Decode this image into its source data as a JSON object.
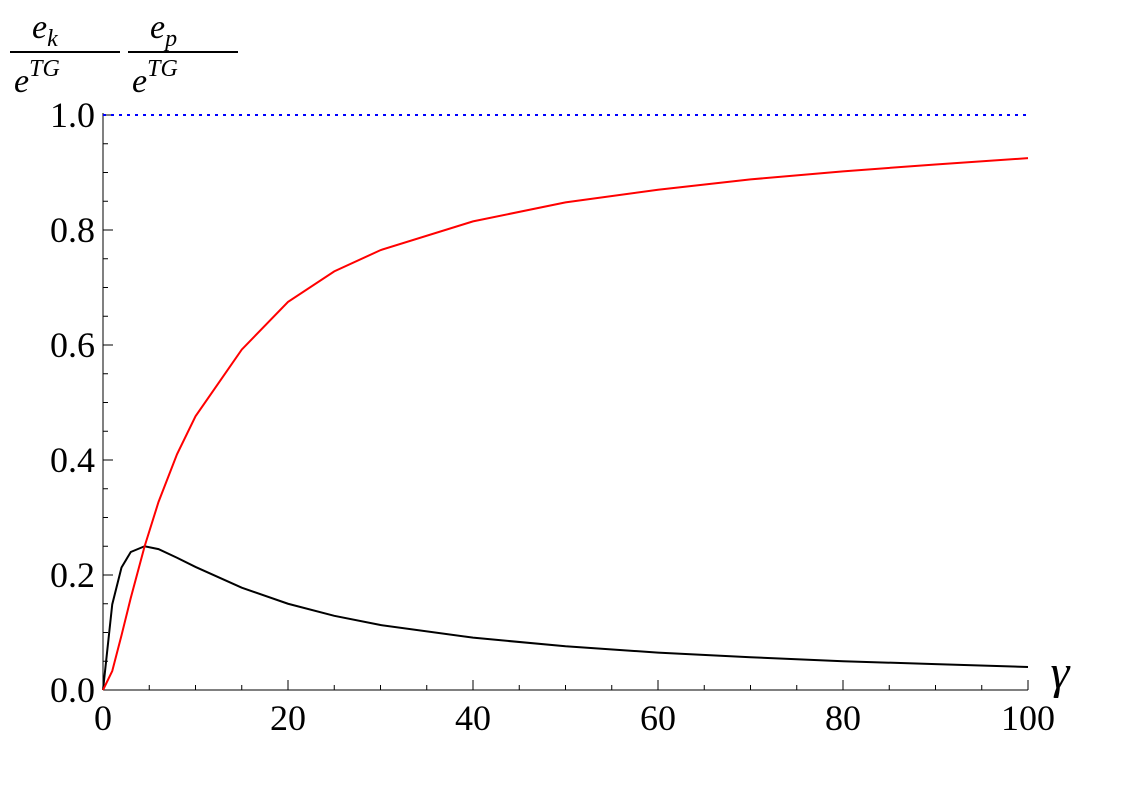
{
  "chart_data": {
    "type": "line",
    "y_label": [
      {
        "num": "e",
        "num_sub": "k",
        "den": "e",
        "den_sup": "TG"
      },
      {
        "num": "e",
        "num_sub": "p",
        "den": "e",
        "den_sup": "TG"
      }
    ],
    "x_label": "γ",
    "x": [
      0,
      1,
      2,
      3,
      4.5,
      6,
      8,
      10,
      15,
      20,
      25,
      30,
      40,
      50,
      60,
      70,
      80,
      90,
      100
    ],
    "series": [
      {
        "color": "#000000",
        "values": [
          0,
          0.149,
          0.213,
          0.24,
          0.25,
          0.245,
          0.23,
          0.214,
          0.178,
          0.15,
          0.129,
          0.113,
          0.091,
          0.076,
          0.065,
          0.057,
          0.05,
          0.045,
          0.04
        ]
      },
      {
        "color": "#ff0000",
        "values": [
          0,
          0.033,
          0.095,
          0.16,
          0.25,
          0.327,
          0.41,
          0.476,
          0.592,
          0.675,
          0.728,
          0.765,
          0.815,
          0.848,
          0.87,
          0.888,
          0.902,
          0.914,
          0.925
        ]
      }
    ],
    "reference_line": {
      "value": 1,
      "color": "#0000ff"
    },
    "xlim": [
      0,
      100
    ],
    "ylim": [
      0,
      1
    ],
    "xticks": [
      0,
      20,
      40,
      60,
      80,
      100
    ],
    "yticks": [
      {
        "value": 0,
        "label": "0.0"
      },
      0.2,
      0.4,
      0.6,
      0.8,
      {
        "value": 1,
        "label": "1.0"
      }
    ],
    "xminorticks": [
      5,
      10,
      15,
      25,
      30,
      35,
      45,
      50,
      55,
      65,
      70,
      75,
      85,
      90,
      95
    ],
    "yminorticks": [
      0.05,
      0.1,
      0.15,
      0.25,
      0.3,
      0.35,
      0.45,
      0.5,
      0.55,
      0.65,
      0.7,
      0.75,
      0.85,
      0.9,
      0.95
    ]
  }
}
